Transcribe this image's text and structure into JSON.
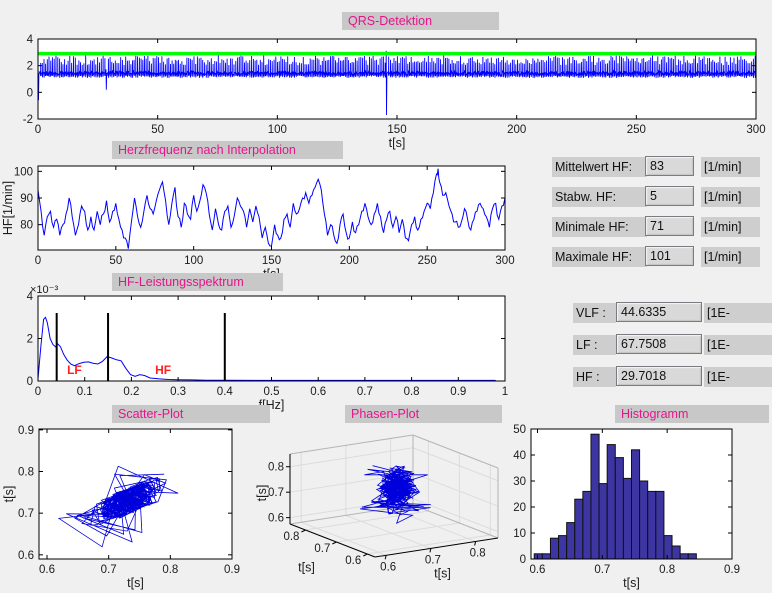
{
  "app": {
    "colors": {
      "background": "#f0f0f0",
      "strip_bg": "#c8c8c8",
      "title_color": "#e6148c",
      "label_bg": "#cecece",
      "editbox_bg": "#d9d9d9"
    }
  },
  "titles": {
    "qrs": "QRS-Detektion",
    "hr": "Herzfrequenz nach Interpolation",
    "spectrum": "HF-Leistungsspektrum",
    "scatter": "Scatter-Plot",
    "phase": "Phasen-Plot",
    "hist": "Histogramm"
  },
  "stats": [
    {
      "label": "Mittelwert HF:",
      "value": "83",
      "unit": "[1/min]"
    },
    {
      "label": "Stabw. HF:",
      "value": "5",
      "unit": "[1/min]"
    },
    {
      "label": "Minimale HF:",
      "value": "71",
      "unit": "[1/min]"
    },
    {
      "label": "Maximale HF:",
      "value": "101",
      "unit": "[1/min]"
    }
  ],
  "bands": [
    {
      "label": "VLF :",
      "value": "44.6335",
      "unit": "[1E-"
    },
    {
      "label": "LF :",
      "value": "67.7508",
      "unit": "[1E-"
    },
    {
      "label": "HF :",
      "value": "29.7018",
      "unit": "[1E-"
    }
  ],
  "chart_data": [
    {
      "id": "qrs",
      "type": "line",
      "title": "QRS-Detektion",
      "xlabel": "t[s]",
      "xlim": [
        0,
        300
      ],
      "ylim": [
        -2,
        4
      ],
      "xticks": [
        0,
        50,
        100,
        150,
        200,
        250,
        300
      ],
      "yticks": [
        -2,
        0,
        2,
        4
      ],
      "line_color": "#0000ff",
      "ecg": {
        "baseline": 1.45,
        "beat_period_s": 0.72,
        "peak_min": 2.05,
        "peak_max": 2.78,
        "artifacts": [
          {
            "t": 0,
            "min": -0.6
          },
          {
            "t": 28,
            "min": 0.2
          },
          {
            "t": 145,
            "max": 3.12,
            "min": -1.7
          }
        ]
      },
      "threshold": {
        "y": 2.9,
        "color": "#00ff00",
        "width": 3.5
      }
    },
    {
      "id": "hr",
      "type": "line",
      "title": "Herzfrequenz nach Interpolation",
      "xlabel": "t[s]",
      "ylabel": "HF[1/min]",
      "xlim": [
        0,
        300
      ],
      "ylim": [
        70.5,
        102
      ],
      "xticks": [
        0,
        50,
        100,
        150,
        200,
        250,
        300
      ],
      "yticks": [
        80,
        90,
        100
      ],
      "line_color": "#0000ff",
      "stats": {
        "mean_1min": 83,
        "std_1min": 5,
        "min_1min": 71,
        "max_1min": 101
      },
      "points": [
        [
          0,
          93
        ],
        [
          2,
          85
        ],
        [
          4,
          76
        ],
        [
          6,
          83
        ],
        [
          8,
          85
        ],
        [
          10,
          79
        ],
        [
          12,
          82
        ],
        [
          14,
          76
        ],
        [
          16,
          80
        ],
        [
          18,
          84
        ],
        [
          20,
          90
        ],
        [
          22,
          83
        ],
        [
          24,
          76
        ],
        [
          26,
          80
        ],
        [
          28,
          87
        ],
        [
          30,
          85
        ],
        [
          32,
          78
        ],
        [
          34,
          83
        ],
        [
          36,
          78
        ],
        [
          38,
          85
        ],
        [
          40,
          80
        ],
        [
          42,
          84
        ],
        [
          44,
          89
        ],
        [
          46,
          81
        ],
        [
          48,
          85
        ],
        [
          50,
          88
        ],
        [
          52,
          82
        ],
        [
          54,
          78
        ],
        [
          56,
          75
        ],
        [
          58,
          71
        ],
        [
          60,
          81
        ],
        [
          62,
          90
        ],
        [
          64,
          83
        ],
        [
          66,
          79
        ],
        [
          68,
          85
        ],
        [
          70,
          91
        ],
        [
          72,
          86
        ],
        [
          74,
          84
        ],
        [
          76,
          89
        ],
        [
          78,
          93
        ],
        [
          80,
          96
        ],
        [
          82,
          89
        ],
        [
          84,
          80
        ],
        [
          86,
          88
        ],
        [
          88,
          94
        ],
        [
          90,
          83
        ],
        [
          92,
          79
        ],
        [
          94,
          88
        ],
        [
          96,
          84
        ],
        [
          98,
          82
        ],
        [
          100,
          91
        ],
        [
          102,
          85
        ],
        [
          104,
          89
        ],
        [
          106,
          95
        ],
        [
          108,
          92
        ],
        [
          110,
          84
        ],
        [
          112,
          78
        ],
        [
          114,
          86
        ],
        [
          116,
          80
        ],
        [
          118,
          78
        ],
        [
          120,
          85
        ],
        [
          122,
          87
        ],
        [
          124,
          79
        ],
        [
          126,
          83
        ],
        [
          128,
          90
        ],
        [
          130,
          87
        ],
        [
          132,
          85
        ],
        [
          134,
          79
        ],
        [
          136,
          86
        ],
        [
          138,
          81
        ],
        [
          140,
          87
        ],
        [
          142,
          83
        ],
        [
          144,
          75
        ],
        [
          146,
          79
        ],
        [
          148,
          73
        ],
        [
          150,
          72
        ],
        [
          152,
          80
        ],
        [
          154,
          76
        ],
        [
          156,
          75
        ],
        [
          158,
          82
        ],
        [
          160,
          84
        ],
        [
          162,
          79
        ],
        [
          164,
          88
        ],
        [
          166,
          84
        ],
        [
          168,
          86
        ],
        [
          170,
          90
        ],
        [
          172,
          92
        ],
        [
          174,
          88
        ],
        [
          176,
          91
        ],
        [
          178,
          94
        ],
        [
          180,
          97
        ],
        [
          182,
          93
        ],
        [
          184,
          84
        ],
        [
          186,
          76
        ],
        [
          188,
          80
        ],
        [
          190,
          76
        ],
        [
          192,
          73
        ],
        [
          194,
          80
        ],
        [
          196,
          84
        ],
        [
          198,
          77
        ],
        [
          200,
          75
        ],
        [
          202,
          81
        ],
        [
          204,
          77
        ],
        [
          206,
          80
        ],
        [
          208,
          85
        ],
        [
          210,
          88
        ],
        [
          212,
          83
        ],
        [
          214,
          80
        ],
        [
          216,
          84
        ],
        [
          218,
          88
        ],
        [
          220,
          83
        ],
        [
          222,
          77
        ],
        [
          224,
          82
        ],
        [
          226,
          85
        ],
        [
          228,
          79
        ],
        [
          230,
          83
        ],
        [
          232,
          77
        ],
        [
          234,
          82
        ],
        [
          236,
          75
        ],
        [
          238,
          74
        ],
        [
          240,
          80
        ],
        [
          242,
          83
        ],
        [
          244,
          78
        ],
        [
          246,
          82
        ],
        [
          248,
          85
        ],
        [
          250,
          88
        ],
        [
          252,
          86
        ],
        [
          254,
          92
        ],
        [
          256,
          99
        ],
        [
          257,
          101
        ],
        [
          258,
          96
        ],
        [
          260,
          91
        ],
        [
          262,
          92
        ],
        [
          264,
          87
        ],
        [
          266,
          84
        ],
        [
          268,
          81
        ],
        [
          270,
          79
        ],
        [
          272,
          81
        ],
        [
          274,
          86
        ],
        [
          276,
          82
        ],
        [
          278,
          78
        ],
        [
          280,
          82
        ],
        [
          282,
          85
        ],
        [
          284,
          88
        ],
        [
          286,
          86
        ],
        [
          288,
          83
        ],
        [
          290,
          79
        ],
        [
          292,
          86
        ],
        [
          294,
          88
        ],
        [
          296,
          82
        ],
        [
          298,
          87
        ],
        [
          300,
          90
        ]
      ]
    },
    {
      "id": "spectrum",
      "type": "line",
      "title": "HF-Leistungsspektrum",
      "xlabel": "f[Hz]",
      "xlim": [
        0,
        1
      ],
      "ylim": [
        0,
        4
      ],
      "y_unit": "1e-3",
      "exp_label": "×10⁻³",
      "xticks": [
        0,
        0.1,
        0.2,
        0.3,
        0.4,
        0.5,
        0.6,
        0.7,
        0.8,
        0.9,
        1
      ],
      "xtick_labels": [
        "0",
        "0.1",
        "0.2",
        "0.3",
        "0.4",
        "0.5",
        "0.6",
        "0.7",
        "0.8",
        "0.9",
        "1"
      ],
      "yticks": [
        0,
        2,
        4
      ],
      "ytick_labels": [
        "0",
        "2",
        "4"
      ],
      "line_color": "#0000ff",
      "points": [
        [
          0,
          0.1
        ],
        [
          0.006,
          1.6
        ],
        [
          0.012,
          2.9
        ],
        [
          0.016,
          3.0
        ],
        [
          0.02,
          2.75
        ],
        [
          0.026,
          2.0
        ],
        [
          0.032,
          1.72
        ],
        [
          0.038,
          1.6
        ],
        [
          0.042,
          1.75
        ],
        [
          0.048,
          1.62
        ],
        [
          0.055,
          1.25
        ],
        [
          0.062,
          1.0
        ],
        [
          0.07,
          0.8
        ],
        [
          0.078,
          0.72
        ],
        [
          0.088,
          0.82
        ],
        [
          0.098,
          0.88
        ],
        [
          0.108,
          0.9
        ],
        [
          0.118,
          0.84
        ],
        [
          0.128,
          0.8
        ],
        [
          0.138,
          0.92
        ],
        [
          0.148,
          1.15
        ],
        [
          0.158,
          1.08
        ],
        [
          0.168,
          1.0
        ],
        [
          0.178,
          0.95
        ],
        [
          0.188,
          0.6
        ],
        [
          0.198,
          0.3
        ],
        [
          0.208,
          0.22
        ],
        [
          0.218,
          0.3
        ],
        [
          0.228,
          0.26
        ],
        [
          0.24,
          0.14
        ],
        [
          0.26,
          0.1
        ],
        [
          0.28,
          0.07
        ],
        [
          0.3,
          0.06
        ],
        [
          0.33,
          0.05
        ],
        [
          0.36,
          0.04
        ],
        [
          0.4,
          0.04
        ],
        [
          0.5,
          0.03
        ],
        [
          0.6,
          0.03
        ],
        [
          0.7,
          0.03
        ],
        [
          0.8,
          0.03
        ],
        [
          0.9,
          0.03
        ],
        [
          0.98,
          0.03
        ]
      ],
      "marker_lines": {
        "x": [
          0.04,
          0.15,
          0.4
        ],
        "height": 3.2,
        "color": "#000000",
        "width": 2
      },
      "band_labels": [
        {
          "text": "LF",
          "x": 0.078,
          "y": 0.32
        },
        {
          "text": "HF",
          "x": 0.268,
          "y": 0.32
        }
      ],
      "band_label_color": "#ff2020"
    },
    {
      "id": "scatter",
      "type": "scatter-line",
      "title": "Scatter-Plot",
      "xlabel": "t[s]",
      "ylabel": "t[s]",
      "xlim": [
        0.587,
        0.9
      ],
      "ylim": [
        0.59,
        0.902
      ],
      "xticks": [
        0.6,
        0.7,
        0.8,
        0.9
      ],
      "xtick_labels": [
        "0.6",
        "0.7",
        "0.8",
        "0.9"
      ],
      "yticks": [
        0.6,
        0.7,
        0.8,
        0.9
      ],
      "ytick_labels": [
        "0.6",
        "0.7",
        "0.8",
        "0.9"
      ],
      "line_color": "#0000dd",
      "gen": {
        "seed": 9,
        "n": 416,
        "mean": 0.7245,
        "ar": 0.62,
        "noise": 0.065,
        "clip": [
          0.597,
          0.845
        ],
        "dip_every": 57,
        "dip": 0.085,
        "spike_every": 83,
        "spike": 0.075
      }
    },
    {
      "id": "phase",
      "type": "line3d",
      "title": "Phasen-Plot",
      "xlabel": "t[s]",
      "ylabel": "t[s]",
      "zlabel": "t[s]",
      "lim": [
        0.575,
        0.85
      ],
      "ticks": [
        0.6,
        0.7,
        0.8
      ],
      "tick_labels": [
        "0.6",
        "0.7",
        "0.8"
      ],
      "line_color": "#0000dd",
      "grid_color": "#dcdcdc"
    },
    {
      "id": "hist",
      "type": "bar",
      "title": "Histogramm",
      "xlabel": "t[s]",
      "xlim": [
        0.59,
        0.9
      ],
      "ylim": [
        0,
        50
      ],
      "xticks": [
        0.6,
        0.7,
        0.8,
        0.9
      ],
      "xtick_labels": [
        "0.6",
        "0.7",
        "0.8",
        "0.9"
      ],
      "yticks": [
        0,
        10,
        20,
        30,
        40,
        50
      ],
      "bin_start": 0.595,
      "bin_width": 0.0125,
      "values": [
        2,
        2,
        8,
        9,
        14,
        23,
        26,
        48,
        29,
        44,
        39,
        31,
        42,
        30,
        26,
        26,
        9,
        5,
        2,
        2
      ],
      "bar_color": "#3d35a1",
      "edge_color": "#111111"
    }
  ]
}
